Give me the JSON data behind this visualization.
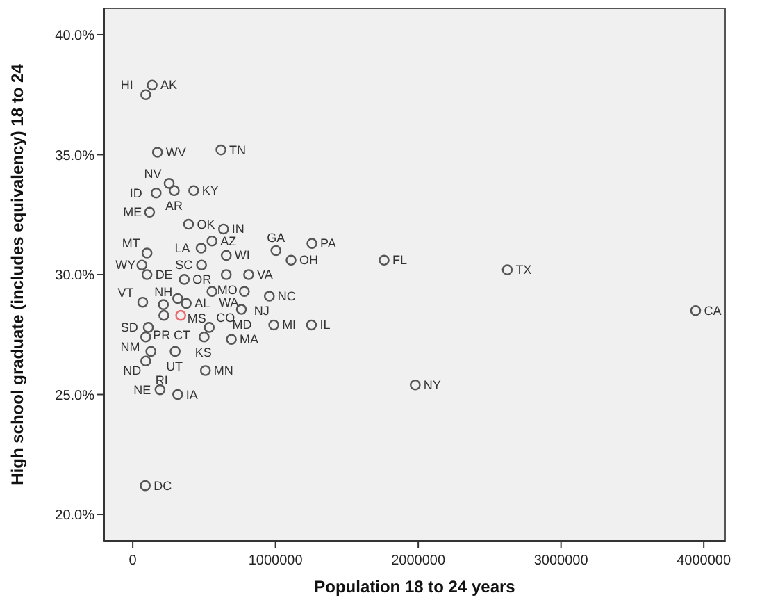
{
  "chart_data": {
    "type": "scatter",
    "xlabel": "Population 18 to 24 years",
    "ylabel": "High school graduate (includes equivalency) 18 to 24",
    "xlim": [
      -200000,
      4150000
    ],
    "xticks": [
      0,
      1000000,
      2000000,
      3000000,
      4000000
    ],
    "ylim": [
      18.9,
      41.1
    ],
    "yticks": [
      {
        "value": 20,
        "label": "20.0%"
      },
      {
        "value": 25,
        "label": "25.0%"
      },
      {
        "value": 30,
        "label": "30.0%"
      },
      {
        "value": 35,
        "label": "35.0%"
      },
      {
        "value": 40,
        "label": "40.0%"
      }
    ],
    "marker": "circle",
    "series": [
      {
        "x": [
          136000,
          91000,
          173000,
          618000,
          255000,
          164000,
          291000,
          427000,
          118000,
          391000,
          636000,
          479000,
          555000,
          100000,
          64000,
          482000,
          655000,
          1003000,
          812000,
          1255000,
          1761000,
          2624000,
          3943000,
          655000,
          100000,
          361000,
          957000,
          1109000,
          70000,
          215000,
          315000,
          375000,
          555000,
          782000,
          761000,
          988000,
          1252000,
          91000,
          109000,
          218000,
          336000,
          297000,
          500000,
          536000,
          691000,
          127000,
          91000,
          191000,
          315000,
          509000,
          1979000,
          88000
        ],
        "values": [
          37.9,
          37.5,
          35.1,
          35.2,
          33.8,
          33.4,
          33.5,
          33.5,
          32.6,
          32.1,
          31.9,
          31.1,
          31.4,
          30.9,
          30.4,
          30.4,
          30.8,
          31.0,
          30.0,
          31.3,
          30.6,
          30.2,
          28.5,
          30.0,
          30.0,
          29.8,
          29.1,
          30.6,
          28.85,
          28.75,
          29.0,
          28.8,
          29.3,
          29.3,
          28.55,
          27.9,
          27.9,
          27.4,
          27.8,
          28.3,
          28.3,
          26.8,
          27.4,
          27.8,
          27.3,
          26.8,
          26.4,
          25.2,
          25.0,
          26.0,
          25.4,
          21.2
        ],
        "colors": [
          "#555555",
          "#555555",
          "#555555",
          "#555555",
          "#555555",
          "#555555",
          "#555555",
          "#555555",
          "#555555",
          "#555555",
          "#555555",
          "#555555",
          "#555555",
          "#555555",
          "#555555",
          "#555555",
          "#555555",
          "#555555",
          "#555555",
          "#555555",
          "#555555",
          "#555555",
          "#555555",
          "#555555",
          "#555555",
          "#555555",
          "#555555",
          "#555555",
          "#555555",
          "#555555",
          "#555555",
          "#555555",
          "#555555",
          "#555555",
          "#555555",
          "#555555",
          "#555555",
          "#555555",
          "#555555",
          "#555555",
          "#e86a6a",
          "#555555",
          "#555555",
          "#555555",
          "#555555",
          "#555555",
          "#555555",
          "#555555",
          "#555555",
          "#555555",
          "#555555",
          "#555555"
        ]
      }
    ],
    "annotations": [
      {
        "text": "AK",
        "x": 136000,
        "y": 37.9
      },
      {
        "text": "HI",
        "x": 91000,
        "y": 37.5
      },
      {
        "text": "WV",
        "x": 173000,
        "y": 35.1
      },
      {
        "text": "TN",
        "x": 618000,
        "y": 35.2
      },
      {
        "text": "NV",
        "x": 255000,
        "y": 33.8
      },
      {
        "text": "ID",
        "x": 164000,
        "y": 33.4
      },
      {
        "text": "AR",
        "x": 291000,
        "y": 33.5
      },
      {
        "text": "KY",
        "x": 427000,
        "y": 33.5
      },
      {
        "text": "ME",
        "x": 118000,
        "y": 32.6
      },
      {
        "text": "OK",
        "x": 391000,
        "y": 32.1
      },
      {
        "text": "IN",
        "x": 636000,
        "y": 31.9
      },
      {
        "text": "LA",
        "x": 479000,
        "y": 31.1
      },
      {
        "text": "AZ",
        "x": 555000,
        "y": 31.4
      },
      {
        "text": "MT",
        "x": 100000,
        "y": 30.9
      },
      {
        "text": "WY",
        "x": 64000,
        "y": 30.4
      },
      {
        "text": "SC",
        "x": 482000,
        "y": 30.4
      },
      {
        "text": "WI",
        "x": 655000,
        "y": 30.8
      },
      {
        "text": "GA",
        "x": 1003000,
        "y": 31.0
      },
      {
        "text": "VA",
        "x": 812000,
        "y": 30.0
      },
      {
        "text": "PA",
        "x": 1255000,
        "y": 31.3
      },
      {
        "text": "FL",
        "x": 1761000,
        "y": 30.6
      },
      {
        "text": "TX",
        "x": 2624000,
        "y": 30.2
      },
      {
        "text": "CA",
        "x": 3943000,
        "y": 28.5
      },
      {
        "text": "MO",
        "x": 655000,
        "y": 30.0
      },
      {
        "text": "DE",
        "x": 100000,
        "y": 30.0
      },
      {
        "text": "OR",
        "x": 361000,
        "y": 29.8
      },
      {
        "text": "NC",
        "x": 957000,
        "y": 29.1
      },
      {
        "text": "OH",
        "x": 1109000,
        "y": 30.6
      },
      {
        "text": "VT",
        "x": 70000,
        "y": 28.85
      },
      {
        "text": "NH",
        "x": 215000,
        "y": 28.75
      },
      {
        "text": "MS",
        "x": 315000,
        "y": 29.0
      },
      {
        "text": "AL",
        "x": 375000,
        "y": 28.8
      },
      {
        "text": "WA",
        "x": 555000,
        "y": 29.3
      },
      {
        "text": "NJ",
        "x": 782000,
        "y": 29.3
      },
      {
        "text": "MD",
        "x": 761000,
        "y": 28.55
      },
      {
        "text": "MI",
        "x": 988000,
        "y": 27.9
      },
      {
        "text": "IL",
        "x": 1252000,
        "y": 27.9
      },
      {
        "text": "SD",
        "x": 91000,
        "y": 27.4
      },
      {
        "text": "NM",
        "x": 109000,
        "y": 27.8
      },
      {
        "text": "CT",
        "x": 218000,
        "y": 28.3
      },
      {
        "text": "PR",
        "x": 336000,
        "y": 28.3
      },
      {
        "text": "UT",
        "x": 297000,
        "y": 26.8
      },
      {
        "text": "KS",
        "x": 500000,
        "y": 27.4
      },
      {
        "text": "CO",
        "x": 536000,
        "y": 27.8
      },
      {
        "text": "MA",
        "x": 691000,
        "y": 27.3
      },
      {
        "text": "ND",
        "x": 127000,
        "y": 26.8
      },
      {
        "text": "RI",
        "x": 91000,
        "y": 26.4
      },
      {
        "text": "NE",
        "x": 191000,
        "y": 25.2
      },
      {
        "text": "IA",
        "x": 315000,
        "y": 25.0
      },
      {
        "text": "MN",
        "x": 509000,
        "y": 26.0
      },
      {
        "text": "NY",
        "x": 1979000,
        "y": 25.4
      },
      {
        "text": "DC",
        "x": 88000,
        "y": 21.2
      }
    ]
  }
}
